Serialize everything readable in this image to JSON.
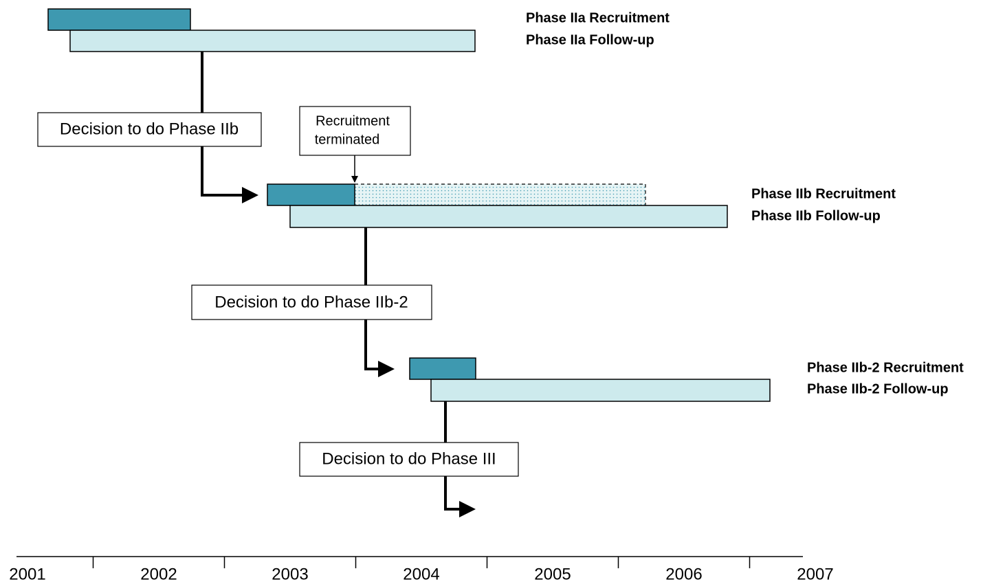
{
  "phases": [
    {
      "recruitment": "Phase IIa Recruitment",
      "follow_up": "Phase IIa Follow-up"
    },
    {
      "recruitment": "Phase IIb Recruitment",
      "follow_up": "Phase IIb Follow-up"
    },
    {
      "recruitment": "Phase IIb-2 Recruitment",
      "follow_up": "Phase IIb-2 Follow-up"
    }
  ],
  "decisions": [
    "Decision to do Phase IIb",
    "Decision to do Phase IIb-2",
    "Decision to do Phase III"
  ],
  "note": {
    "line1": "Recruitment",
    "line2": "terminated"
  },
  "axis": {
    "labels": [
      "2001",
      "2002",
      "2003",
      "2004",
      "2005",
      "2006",
      "2007"
    ]
  }
}
